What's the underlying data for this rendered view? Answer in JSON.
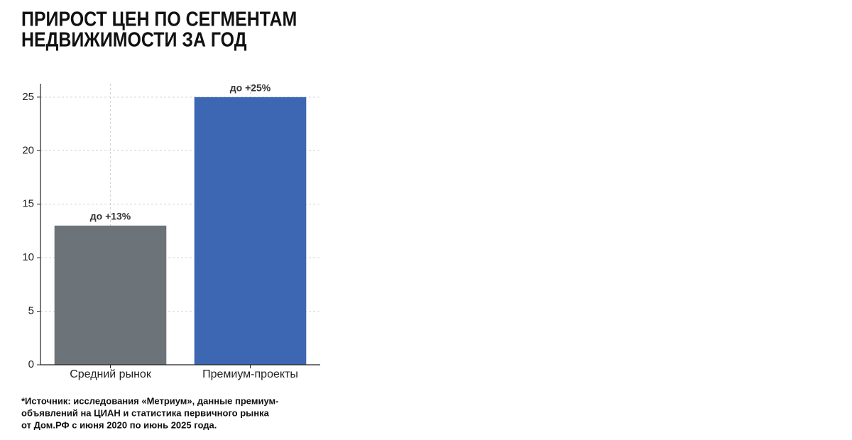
{
  "chart_data": {
    "type": "bar",
    "title": [
      "ПРИРОСТ ЦЕН ПО СЕГМЕНТАМ",
      "НЕДВИЖИМОСТИ ЗА ГОД"
    ],
    "categories": [
      "Средний рынок",
      "Премиум-проекты"
    ],
    "values": [
      13,
      25
    ],
    "value_labels": [
      "до +13%",
      "до +25%"
    ],
    "colors": [
      "#6c7479",
      "#3d67b2"
    ],
    "ylim": [
      0,
      26.25
    ],
    "yticks": [
      0,
      5,
      10,
      15,
      20,
      25
    ],
    "grid": true,
    "source_note": [
      "*Источник: исследования «Метриум», данные премиум-",
      "объявлений на ЦИАН и статистика первичного рынка",
      "от Дом.РФ с июня 2020 по июнь 2025 года."
    ]
  }
}
